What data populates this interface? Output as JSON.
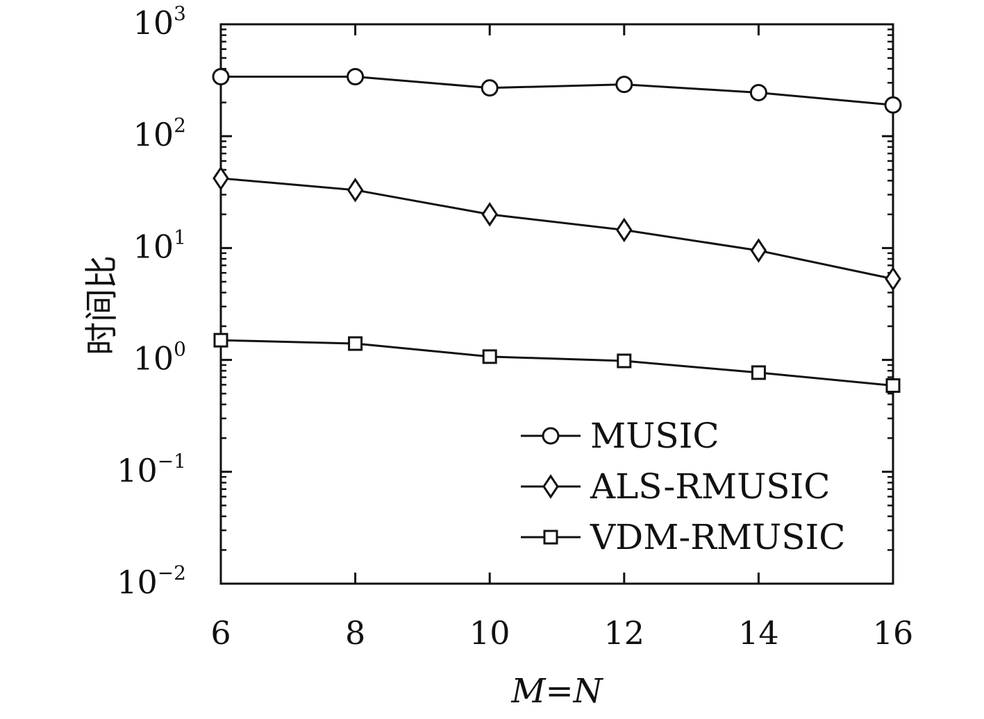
{
  "chart_data": {
    "type": "line",
    "title": "",
    "xlabel": "M=N",
    "ylabel": "时间比",
    "x": [
      6,
      8,
      10,
      12,
      14,
      16
    ],
    "xticks": [
      "6",
      "8",
      "10",
      "12",
      "14",
      "16"
    ],
    "xlim": [
      6,
      16
    ],
    "yscale": "log",
    "ylim": [
      0.01,
      1000
    ],
    "yticks": [
      {
        "base": "10",
        "exp": "3"
      },
      {
        "base": "10",
        "exp": "2"
      },
      {
        "base": "10",
        "exp": "1"
      },
      {
        "base": "10",
        "exp": "0"
      },
      {
        "base": "10",
        "exp": "−1"
      },
      {
        "base": "10",
        "exp": "−2"
      }
    ],
    "grid": false,
    "legend_position": "bottom-right",
    "series": [
      {
        "name": "MUSIC",
        "marker": "circle",
        "values": [
          340,
          340,
          270,
          290,
          245,
          190
        ]
      },
      {
        "name": "ALS-RMUSIC",
        "marker": "diamond",
        "values": [
          42,
          33,
          20,
          14.5,
          9.5,
          5.3
        ]
      },
      {
        "name": "VDM-RMUSIC",
        "marker": "square",
        "values": [
          1.5,
          1.4,
          1.07,
          0.98,
          0.77,
          0.59
        ]
      }
    ],
    "colors": {
      "line": "#111111"
    }
  }
}
